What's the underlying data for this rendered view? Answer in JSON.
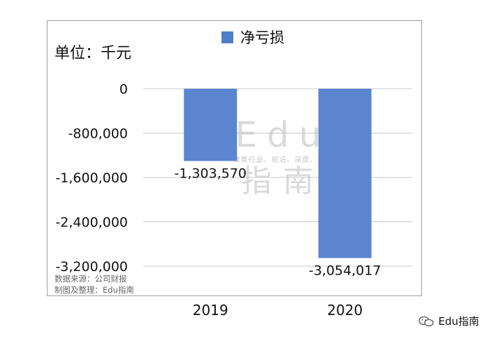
{
  "unit_label": "单位：千元",
  "source_lines": [
    "数据来源：公司财报",
    "制图及整理：Edu指南"
  ],
  "watermark": {
    "brand": "Edu指南",
    "center_top": "Edu",
    "center_tagline": "教育行业、前沿、深度、独家",
    "center_bottom": "指南"
  },
  "colors": {
    "bar": "#5b86cf",
    "bar_dark": "#3f69b8",
    "grid": "#c8c8c8",
    "frame": "#9e9e9e"
  },
  "chart_data": {
    "type": "bar",
    "categories": [
      "2019",
      "2020"
    ],
    "series": [
      {
        "name": "净亏损",
        "values": [
          -1303570,
          -3054017
        ]
      }
    ],
    "data_labels": [
      "-1,303,570",
      "-3,054,017"
    ],
    "yticks": [
      0,
      -800000,
      -1600000,
      -2400000,
      -3200000
    ],
    "ytick_labels": [
      "0",
      "-800,000",
      "-1,600,000",
      "-2,400,000",
      "-3,200,000"
    ],
    "ylim": [
      -3200000,
      0
    ],
    "grid": true,
    "legend": "top-center",
    "title": "",
    "xlabel": "",
    "ylabel": ""
  }
}
